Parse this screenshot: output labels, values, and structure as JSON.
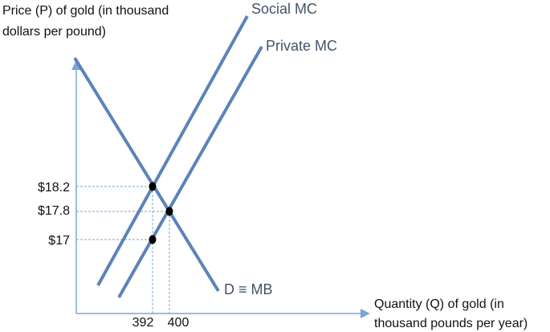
{
  "axes": {
    "y_title": [
      "Price (P) of gold (in thousand",
      "dollars per pound)"
    ],
    "x_title": [
      "Quantity (Q) of gold (in",
      "thousand pounds per year)"
    ]
  },
  "curves": {
    "social_mc": "Social MC",
    "private_mc": "Private MC",
    "demand": "D ≡ MB"
  },
  "price_labels": [
    "$18.2",
    "$17.8",
    "$17"
  ],
  "quantity_labels": [
    "392",
    "400"
  ]
}
